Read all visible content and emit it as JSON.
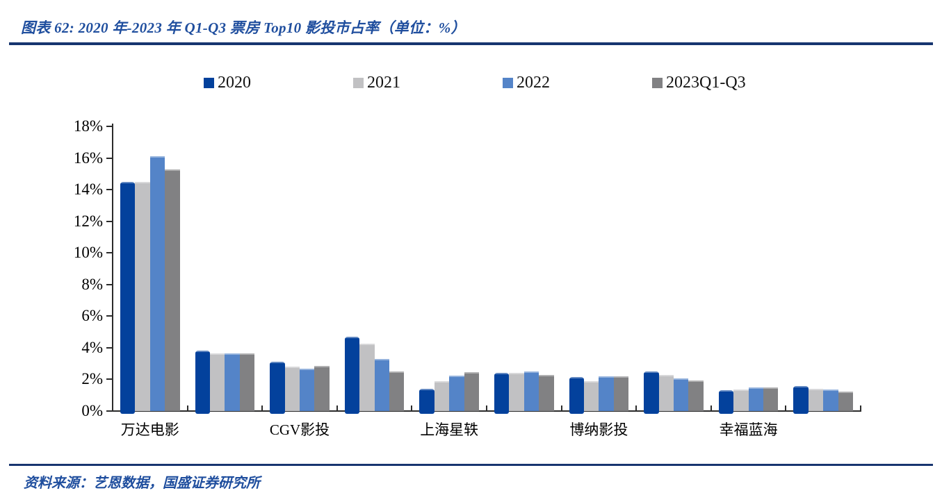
{
  "header": {
    "title": "图表 62:  2020 年-2023 年 Q1-Q3 票房 Top10 影投市占率（单位：%）"
  },
  "footer": {
    "source": "资料来源：艺恩数据，国盛证券研究所"
  },
  "colors": {
    "title_blue": "#1F4E9E",
    "rule_navy": "#17356F",
    "axis": "#2B2B2B",
    "series_2020": "#03419C",
    "series_2021": "#C1C1C3",
    "series_2022": "#5484C8",
    "series_2023": "#818183"
  },
  "chart_data": {
    "type": "bar",
    "title": "2020 年-2023 年 Q1-Q3 票房 Top10 影投市占率",
    "unit": "%",
    "categories": [
      "万达电影",
      "",
      "CGV影投",
      "",
      "上海星轶",
      "",
      "博纳影投",
      "",
      "幸福蓝海",
      ""
    ],
    "series": [
      {
        "name": "2020",
        "color": "#03419C",
        "values": [
          14.5,
          3.8,
          3.1,
          4.7,
          1.4,
          2.4,
          2.15,
          2.5,
          1.3,
          1.6
        ]
      },
      {
        "name": "2021",
        "color": "#C1C1C3",
        "values": [
          14.5,
          3.65,
          2.8,
          4.25,
          1.9,
          2.4,
          1.9,
          2.3,
          1.35,
          1.4
        ]
      },
      {
        "name": "2022",
        "color": "#5484C8",
        "values": [
          16.1,
          3.65,
          2.7,
          3.3,
          2.25,
          2.5,
          2.2,
          2.05,
          1.5,
          1.35
        ]
      },
      {
        "name": "2023Q1-Q3",
        "color": "#818183",
        "values": [
          15.3,
          3.65,
          2.85,
          2.5,
          2.45,
          2.3,
          2.2,
          1.95,
          1.5,
          1.25
        ]
      }
    ],
    "ylim": [
      0,
      18
    ],
    "ytick_step": 2,
    "ytick_suffix": "%",
    "legend_position": "top",
    "grid": false
  }
}
